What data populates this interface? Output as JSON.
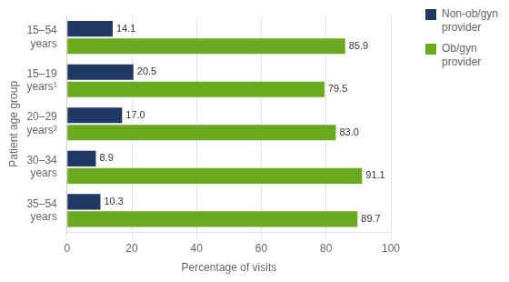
{
  "chart_data": {
    "type": "bar",
    "orientation": "horizontal",
    "categories": [
      "15–54\nyears",
      "15–19\nyears¹",
      "20–29\nyears²",
      "30–34\nyears",
      "35–54\nyears"
    ],
    "series": [
      {
        "name": "Non-ob/gyn\nprovider",
        "color": "#1f3864",
        "values": [
          14.1,
          20.5,
          17.0,
          8.9,
          10.3
        ],
        "value_labels": [
          "14.1",
          "20.5",
          "17.0",
          "8.9",
          "10.3"
        ]
      },
      {
        "name": "Ob/gyn\nprovider",
        "color": "#6aaa1e",
        "values": [
          85.9,
          79.5,
          83.0,
          91.1,
          89.7
        ],
        "value_labels": [
          "85.9",
          "79.5",
          "83.0",
          "91.1",
          "89.7"
        ]
      }
    ],
    "x_label": "Percentage of visits",
    "y_label": "Patient age group",
    "xlim": [
      0,
      100
    ],
    "xticks": [
      0,
      20,
      40,
      60,
      80,
      100
    ],
    "grid": true,
    "legend": "upper right",
    "data_labels": true
  }
}
